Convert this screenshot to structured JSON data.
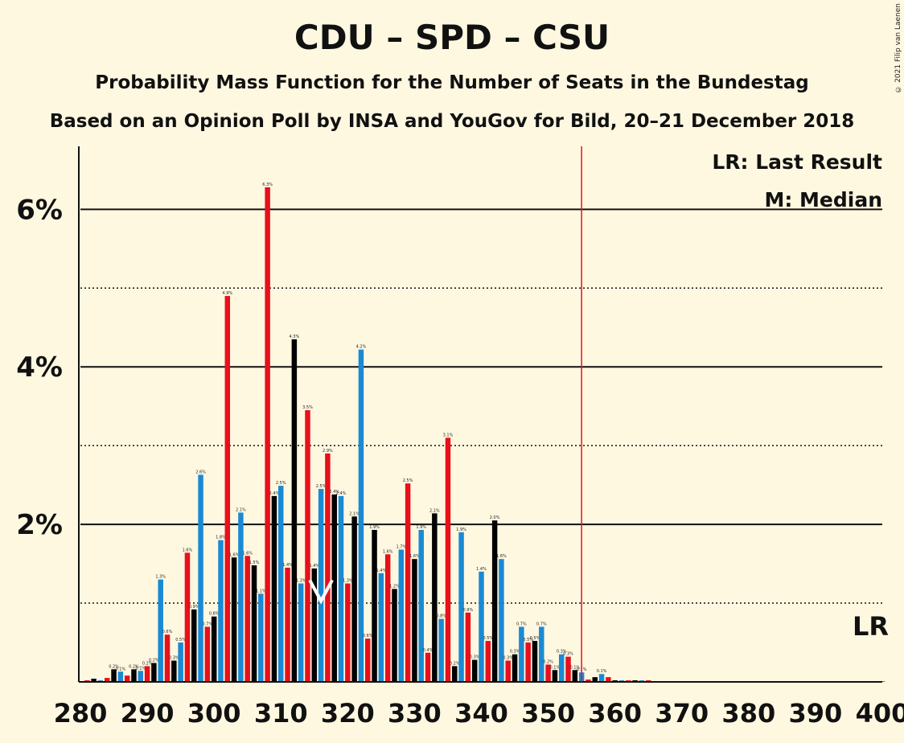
{
  "chart_data": {
    "type": "bar",
    "title": "CDU – SPD – CSU",
    "subtitle": "Probability Mass Function for the Number of Seats in the Bundestag",
    "source": "Based on an Opinion Poll by INSA and YouGov for Bild, 20–21 December 2018",
    "copyright": "© 2021 Filip van Laenen",
    "xlim": [
      280,
      400
    ],
    "ylim": [
      0,
      6.8
    ],
    "x_ticks": [
      "280",
      "290",
      "300",
      "310",
      "320",
      "330",
      "340",
      "350",
      "360",
      "370",
      "380",
      "390",
      "400"
    ],
    "y_ticks": [
      {
        "value": 2,
        "label": "2%"
      },
      {
        "value": 4,
        "label": "4%"
      },
      {
        "value": 6,
        "label": "6%"
      }
    ],
    "dotted_gridlines": [
      1,
      3,
      5
    ],
    "legend": [
      "LR: Last Result",
      "M: Median"
    ],
    "last_result": {
      "seats": 355,
      "label": "LR"
    },
    "median": {
      "seats": 316,
      "label": "M"
    },
    "bar_colors": [
      "#1a8ad4",
      "#e8101a",
      "#000000"
    ],
    "series": [
      {
        "name": "Probability (%)",
        "x": [
          280,
          281,
          282,
          283,
          284,
          285,
          286,
          287,
          288,
          289,
          290,
          291,
          292,
          293,
          294,
          295,
          296,
          297,
          298,
          299,
          300,
          301,
          302,
          303,
          304,
          305,
          306,
          307,
          308,
          309,
          310,
          311,
          312,
          313,
          314,
          315,
          316,
          317,
          318,
          319,
          320,
          321,
          322,
          323,
          324,
          325,
          326,
          327,
          328,
          329,
          330,
          331,
          332,
          333,
          334,
          335,
          336,
          337,
          338,
          339,
          340,
          341,
          342,
          343,
          344,
          345,
          346,
          347,
          348,
          349,
          350,
          351,
          352,
          353,
          354,
          355,
          356,
          357,
          358,
          359,
          360,
          361,
          362,
          363,
          364,
          365,
          366,
          367,
          368,
          369,
          370,
          371,
          372,
          373,
          374,
          375,
          376,
          377,
          378,
          379,
          380,
          381,
          382,
          383,
          384,
          385,
          386,
          387,
          388,
          389,
          390,
          391,
          392,
          393,
          394,
          395,
          396,
          397,
          398,
          399,
          400
        ],
        "values": [
          0.01,
          0.02,
          0.04,
          0.02,
          0.05,
          0.16,
          0.13,
          0.08,
          0.16,
          0.14,
          0.2,
          0.24,
          1.3,
          0.6,
          0.27,
          0.5,
          1.64,
          0.92,
          2.63,
          0.7,
          0.83,
          1.8,
          4.9,
          1.58,
          2.15,
          1.6,
          1.48,
          1.12,
          6.28,
          2.36,
          2.49,
          1.45,
          4.35,
          1.25,
          3.45,
          1.44,
          2.45,
          2.9,
          2.38,
          2.36,
          1.25,
          2.1,
          4.22,
          0.55,
          1.93,
          1.38,
          1.62,
          1.18,
          1.68,
          2.52,
          1.56,
          1.93,
          0.37,
          2.14,
          0.8,
          3.1,
          0.2,
          1.9,
          0.88,
          0.28,
          1.4,
          0.52,
          2.05,
          1.56,
          0.27,
          0.35,
          0.7,
          0.5,
          0.52,
          0.7,
          0.22,
          0.15,
          0.35,
          0.32,
          0.15,
          0.12,
          0.03,
          0.06,
          0.1,
          0.06,
          0.02,
          0.02,
          0.02,
          0.02,
          0.02,
          0.02,
          0.01,
          0.01,
          0.01,
          0.01,
          0.01,
          0.01,
          0.01,
          0.01,
          0.01,
          0.01,
          0.01,
          0.01,
          0.01,
          0.01,
          0.01,
          0.01,
          0.01,
          0.01,
          0.01,
          0.01,
          0.01,
          0.01,
          0.01,
          0.01,
          0.01,
          0.01,
          0.01,
          0.01,
          0.01,
          0.01,
          0.01,
          0.01,
          0.01,
          0.01,
          0.01
        ]
      }
    ]
  }
}
